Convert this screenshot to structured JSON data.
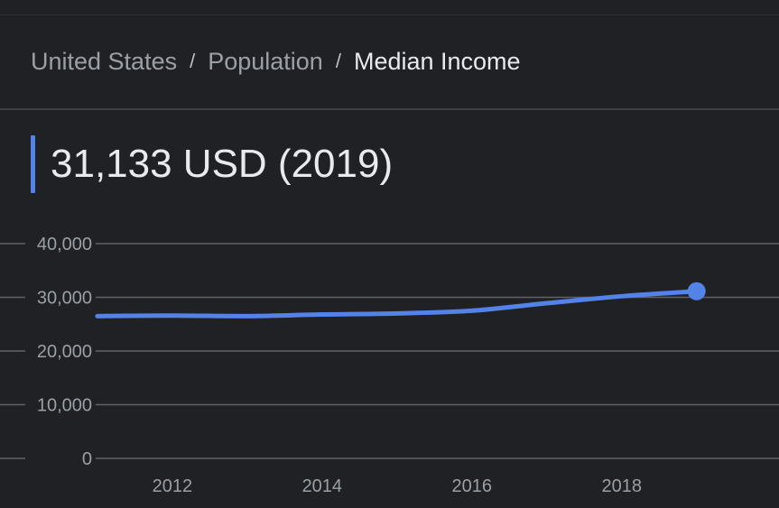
{
  "breadcrumb": {
    "level1": "United States",
    "level2": "Population",
    "current": "Median Income",
    "separator": "/"
  },
  "headline": {
    "value": "31,133 USD (2019)"
  },
  "colors": {
    "accent": "#5383e8",
    "series": "#5383e8",
    "grid": "#5f6368",
    "background": "#202124"
  },
  "chart_data": {
    "type": "line",
    "x": [
      2011,
      2012,
      2013,
      2014,
      2015,
      2016,
      2017,
      2018,
      2019
    ],
    "values": [
      26500,
      26600,
      26500,
      26800,
      27000,
      27500,
      28900,
      30200,
      31133
    ],
    "xlim": [
      2009.7,
      2020.1
    ],
    "ylim": [
      0,
      40000
    ],
    "yticks": [
      "0",
      "10,000",
      "20,000",
      "30,000",
      "40,000"
    ],
    "ytick_values": [
      0,
      10000,
      20000,
      30000,
      40000
    ],
    "xticks": [
      "2012",
      "2014",
      "2016",
      "2018"
    ],
    "xtick_values": [
      2012,
      2014,
      2016,
      2018
    ],
    "highlight_last_point": true,
    "grid": true,
    "legend": "none"
  }
}
